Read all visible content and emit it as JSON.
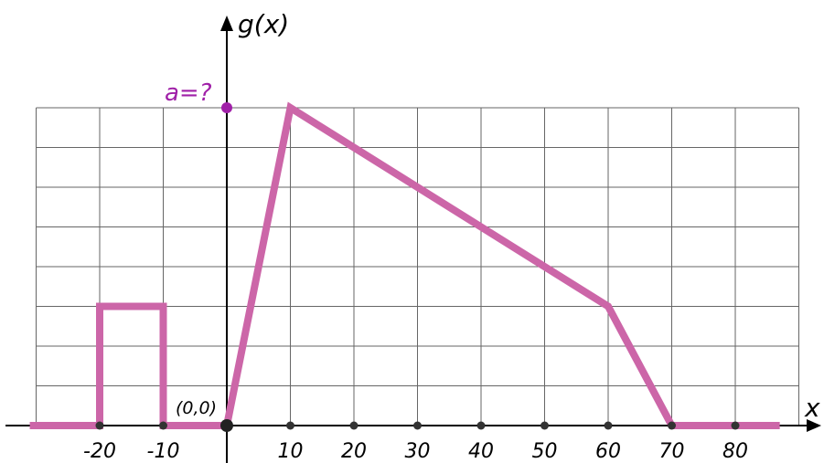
{
  "chart_data": {
    "type": "line",
    "ylabel": "g(x)",
    "xlabel": "x",
    "origin_label": "(0,0)",
    "a_label": "a=?",
    "x_ticks": [
      -20,
      -10,
      10,
      20,
      30,
      40,
      50,
      60,
      70,
      80
    ],
    "x_tick_labels": [
      "-20",
      "-10",
      "10",
      "20",
      "30",
      "40",
      "50",
      "60",
      "70",
      "80"
    ],
    "xlim": [
      -30,
      90
    ],
    "ylim": [
      0,
      8
    ],
    "grid": true,
    "series": [
      {
        "points": [
          [
            -31,
            0
          ],
          [
            -20,
            0
          ],
          [
            -20,
            3
          ],
          [
            -10,
            3
          ],
          [
            -10,
            0
          ],
          [
            0,
            0
          ],
          [
            10,
            8
          ],
          [
            60,
            3
          ],
          [
            70,
            0
          ],
          [
            87,
            0
          ]
        ]
      }
    ]
  },
  "colors": {
    "line": "#cc66a8",
    "a_marker": "#a020a8",
    "grid": "#666666",
    "axis": "#000000"
  }
}
